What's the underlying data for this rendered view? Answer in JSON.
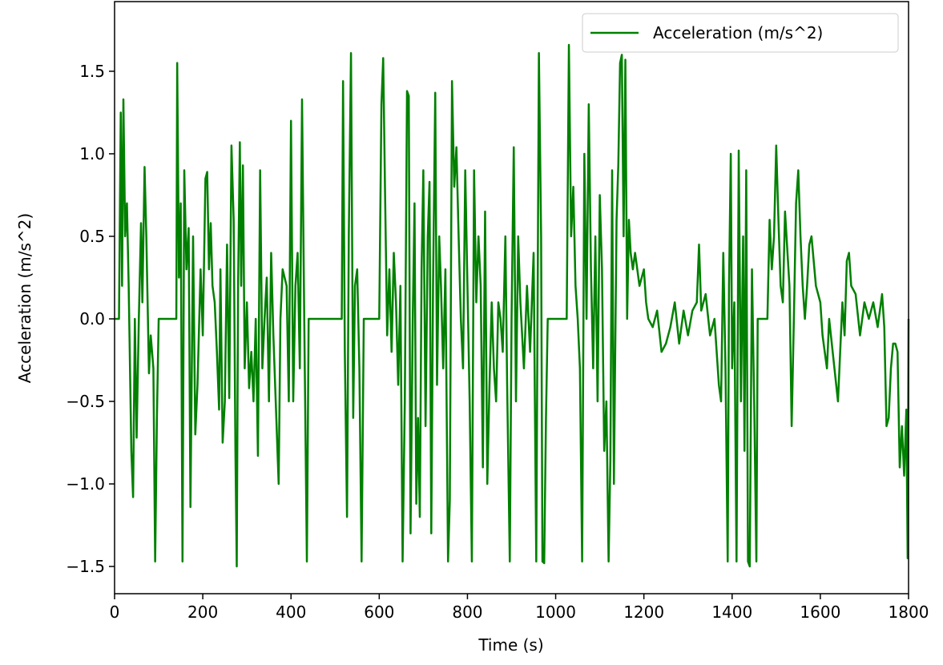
{
  "chart_data": {
    "type": "line",
    "x_label": "Time (s)",
    "y_label": "Acceleration (m/s^2)",
    "x": [
      0,
      10,
      14,
      17,
      20,
      24,
      28,
      32,
      38,
      42,
      46,
      50,
      55,
      60,
      63,
      68,
      72,
      78,
      82,
      88,
      92,
      96,
      100,
      140,
      142,
      146,
      150,
      154,
      158,
      163,
      168,
      172,
      178,
      183,
      188,
      195,
      200,
      206,
      210,
      214,
      218,
      222,
      227,
      232,
      237,
      240,
      245,
      250,
      255,
      260,
      265,
      270,
      274,
      277,
      280,
      284,
      287,
      291,
      295,
      300,
      305,
      310,
      315,
      320,
      325,
      330,
      335,
      340,
      345,
      350,
      355,
      360,
      372,
      376,
      381,
      390,
      395,
      400,
      405,
      410,
      415,
      420,
      425,
      430,
      436,
      440,
      515,
      518,
      522,
      527,
      531,
      536,
      541,
      545,
      550,
      555,
      560,
      565,
      600,
      605,
      609,
      613,
      618,
      623,
      628,
      633,
      638,
      643,
      648,
      653,
      658,
      663,
      667,
      671,
      676,
      680,
      684,
      688,
      692,
      696,
      700,
      705,
      710,
      714,
      718,
      722,
      727,
      731,
      736,
      740,
      745,
      750,
      756,
      760,
      765,
      770,
      775,
      780,
      785,
      790,
      795,
      800,
      805,
      810,
      815,
      820,
      825,
      830,
      835,
      840,
      845,
      850,
      855,
      860,
      865,
      870,
      875,
      880,
      886,
      890,
      896,
      900,
      905,
      910,
      915,
      920,
      928,
      935,
      942,
      950,
      956,
      962,
      967,
      970,
      974,
      978,
      982,
      1025,
      1030,
      1035,
      1040,
      1045,
      1050,
      1055,
      1060,
      1065,
      1070,
      1075,
      1080,
      1085,
      1090,
      1095,
      1100,
      1105,
      1110,
      1115,
      1120,
      1124,
      1128,
      1132,
      1138,
      1142,
      1146,
      1150,
      1154,
      1158,
      1162,
      1166,
      1170,
      1175,
      1180,
      1190,
      1200,
      1205,
      1210,
      1220,
      1230,
      1240,
      1250,
      1260,
      1270,
      1280,
      1290,
      1300,
      1310,
      1320,
      1325,
      1330,
      1340,
      1350,
      1360,
      1370,
      1375,
      1380,
      1385,
      1390,
      1393,
      1397,
      1400,
      1405,
      1410,
      1415,
      1420,
      1425,
      1428,
      1432,
      1436,
      1440,
      1445,
      1450,
      1455,
      1458,
      1480,
      1485,
      1490,
      1495,
      1500,
      1505,
      1510,
      1515,
      1520,
      1530,
      1535,
      1540,
      1545,
      1550,
      1555,
      1560,
      1565,
      1570,
      1575,
      1580,
      1590,
      1600,
      1605,
      1610,
      1615,
      1620,
      1630,
      1640,
      1645,
      1650,
      1655,
      1660,
      1665,
      1670,
      1680,
      1690,
      1700,
      1710,
      1720,
      1730,
      1740,
      1745,
      1750,
      1755,
      1760,
      1765,
      1770,
      1775,
      1780,
      1785,
      1790,
      1795,
      1798,
      1800
    ],
    "series": [
      {
        "name": "Acceleration (m/s^2)",
        "color": "#008000",
        "values": [
          0,
          0,
          1.25,
          0.2,
          1.33,
          0.5,
          0.7,
          0.2,
          -0.8,
          -1.08,
          0,
          -0.72,
          0,
          0.58,
          0.1,
          0.92,
          0.5,
          -0.33,
          -0.1,
          -0.3,
          -1.47,
          -0.6,
          0,
          0,
          1.55,
          0.25,
          0.7,
          -1.47,
          0.9,
          0.3,
          0.55,
          -1.14,
          0.5,
          -0.7,
          -0.4,
          0.3,
          -0.1,
          0.85,
          0.89,
          0.3,
          0.58,
          0.2,
          0.1,
          -0.2,
          -0.55,
          0.3,
          -0.75,
          -0.5,
          0.45,
          -0.48,
          1.05,
          0.6,
          -0.8,
          -1.5,
          0.2,
          1.07,
          0.2,
          0.93,
          -0.3,
          0.1,
          -0.42,
          -0.2,
          -0.5,
          0,
          -0.83,
          0.9,
          -0.3,
          0,
          0.25,
          -0.5,
          0.4,
          -0.1,
          -1,
          0,
          0.3,
          0.2,
          -0.5,
          1.2,
          -0.5,
          0.2,
          0.4,
          -0.3,
          1.33,
          0,
          -1.47,
          0,
          0,
          1.44,
          -0.2,
          -1.2,
          0.5,
          1.61,
          -0.6,
          0.2,
          0.3,
          -0.3,
          -1.47,
          0,
          0,
          1.3,
          1.58,
          0.8,
          -0.1,
          0.3,
          -0.2,
          0.4,
          0.1,
          -0.4,
          0.2,
          -1.47,
          -0.5,
          1.38,
          1.35,
          -1.3,
          0,
          0.7,
          -1.12,
          -0.6,
          -1.2,
          0.3,
          0.9,
          -0.65,
          0.5,
          0.83,
          -1.3,
          0.2,
          1.37,
          -0.4,
          0.5,
          0.2,
          -0.3,
          0.3,
          -1.47,
          -1.1,
          1.44,
          0.8,
          1.04,
          0.5,
          0,
          -0.3,
          0.9,
          0.2,
          -0.5,
          -1.47,
          0.9,
          0.1,
          0.5,
          0.2,
          -0.9,
          0.65,
          -1,
          -0.4,
          0.1,
          -0.3,
          -0.5,
          0.1,
          0,
          -0.2,
          0.5,
          -0.4,
          -1.47,
          0,
          1.04,
          -0.5,
          0.5,
          0.1,
          -0.3,
          0.2,
          -0.2,
          0.4,
          -1.47,
          1.61,
          0.5,
          -1.47,
          -1.48,
          -0.6,
          0,
          0,
          1.66,
          0.5,
          0.8,
          0.2,
          0,
          -0.3,
          -1.47,
          1,
          0,
          1.3,
          0.3,
          -0.3,
          0.5,
          -0.5,
          0.75,
          0.3,
          -0.8,
          -0.5,
          -1.47,
          -0.86,
          0.9,
          -1,
          0.6,
          0.93,
          1.55,
          1.6,
          0.5,
          1.57,
          0,
          0.6,
          0.4,
          0.3,
          0.4,
          0.2,
          0.3,
          0.1,
          0,
          -0.05,
          0.05,
          -0.2,
          -0.15,
          -0.05,
          0.1,
          -0.15,
          0.05,
          -0.1,
          0.05,
          0.1,
          0.45,
          0.05,
          0.15,
          -0.1,
          0,
          -0.4,
          -0.5,
          0.4,
          -0.3,
          -1.47,
          0.2,
          1,
          -0.3,
          0.1,
          -1.47,
          1.02,
          -0.5,
          0.5,
          -0.8,
          0.9,
          -1.47,
          -1.5,
          0.3,
          -0.5,
          -1.47,
          0,
          0,
          0.6,
          0.3,
          0.5,
          1.05,
          0.6,
          0.2,
          0.1,
          0.65,
          0.2,
          -0.65,
          0,
          0.7,
          0.9,
          0.5,
          0.2,
          0,
          0.2,
          0.45,
          0.5,
          0.2,
          0.1,
          -0.1,
          -0.2,
          -0.3,
          0,
          -0.25,
          -0.5,
          -0.2,
          0.1,
          -0.1,
          0.35,
          0.4,
          0.2,
          0.15,
          -0.1,
          0.1,
          0,
          0.1,
          -0.05,
          0.15,
          -0.05,
          -0.65,
          -0.6,
          -0.3,
          -0.15,
          -0.15,
          -0.2,
          -0.9,
          -0.65,
          -0.95,
          -0.55,
          -1.45,
          0
        ]
      }
    ],
    "xlim": [
      0,
      1800
    ],
    "xticks": [
      0,
      200,
      400,
      600,
      800,
      1000,
      1200,
      1400,
      1600,
      1800
    ],
    "ylim": [
      -1.665,
      1.922
    ],
    "yticks": [
      {
        "value": -1.5,
        "label": "−1.5"
      },
      {
        "value": -1.0,
        "label": "−1.0"
      },
      {
        "value": -0.5,
        "label": "−0.5"
      },
      {
        "value": 0.0,
        "label": "0.0"
      },
      {
        "value": 0.5,
        "label": "0.5"
      },
      {
        "value": 1.0,
        "label": "1.0"
      },
      {
        "value": 1.5,
        "label": "1.5"
      }
    ],
    "legend": "upper right"
  }
}
